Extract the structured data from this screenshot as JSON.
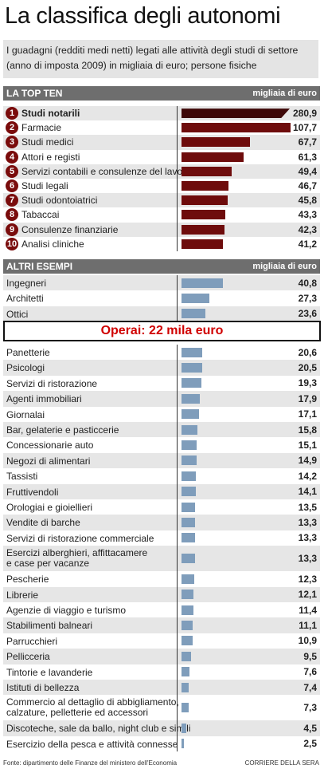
{
  "title": "La classifica degli autonomi",
  "subtitle": "I guadagni (redditi medi netti) legati alle attività degli studi di settore (anno di imposta 2009) in migliaia di euro; persone fisiche",
  "top_ten_header": "LA TOP TEN",
  "others_header": "ALTRI ESEMPI",
  "unit_label": "migliaia di euro",
  "operai_label": "Operai: 22 mila euro",
  "source": "Fonte: dipartimento delle Finanze del ministero dell'Economia",
  "credit": "CORRIERE DELLA SERA",
  "colors": {
    "top_ten_bar": "#6e0c0c",
    "top_ten_bar_first": "#3d0707",
    "other_bar": "#7f9dbb",
    "badge": "#7a0c0c",
    "header_bg": "#6e6e6e"
  },
  "chart_data": {
    "type": "bar",
    "orientation": "horizontal",
    "unit": "migliaia di euro",
    "top_ten": {
      "categories": [
        "Studi notarili",
        "Farmacie",
        "Studi medici",
        "Attori e registi",
        "Servizi contabili e consulenze del lavoro",
        "Studi legali",
        "Studi odontoiatrici",
        "Tabaccai",
        "Consulenze finanziarie",
        "Analisi cliniche"
      ],
      "values": [
        280.9,
        107.7,
        67.7,
        61.3,
        49.4,
        46.7,
        45.8,
        43.3,
        42.3,
        41.2
      ],
      "labels": [
        "280,9",
        "107,7",
        "67,7",
        "61,3",
        "49,4",
        "46,7",
        "45,8",
        "43,3",
        "42,3",
        "41,2"
      ],
      "ranks": [
        "1",
        "2",
        "3",
        "4",
        "5",
        "6",
        "7",
        "8",
        "9",
        "10"
      ]
    },
    "altri_esempi": {
      "categories": [
        "Ingegneri",
        "Architetti",
        "Ottici",
        "Panetterie",
        "Psicologi",
        "Servizi di ristorazione",
        "Agenti immobiliari",
        "Giornalai",
        "Bar, gelaterie e pasticcerie",
        "Concessionarie auto",
        "Negozi di alimentari",
        "Tassisti",
        "Fruttivendoli",
        "Orologiai e gioiellieri",
        "Vendite di barche",
        "Servizi di ristorazione commerciale",
        "Esercizi alberghieri, affittacamere\ne case per vacanze",
        "Pescherie",
        "Librerie",
        "Agenzie di viaggio e turismo",
        "Stabilimenti balneari",
        "Parrucchieri",
        "Pellicceria",
        "Tintorie e lavanderie",
        "Istituti di bellezza",
        "Commercio al dettaglio di abbigliamento,\ncalzature, pelletterie ed accessori",
        "Discoteche, sale da ballo, night club e simili",
        "Esercizio della pesca e attività connesse"
      ],
      "values": [
        40.8,
        27.3,
        23.6,
        20.6,
        20.5,
        19.3,
        17.9,
        17.1,
        15.8,
        15.1,
        14.9,
        14.2,
        14.1,
        13.5,
        13.3,
        13.3,
        13.3,
        12.3,
        12.1,
        11.4,
        11.1,
        10.9,
        9.5,
        7.6,
        7.4,
        7.3,
        4.5,
        2.5
      ],
      "labels": [
        "40,8",
        "27,3",
        "23,6",
        "20,6",
        "20,5",
        "19,3",
        "17,9",
        "17,1",
        "15,8",
        "15,1",
        "14,9",
        "14,2",
        "14,1",
        "13,5",
        "13,3",
        "13,3",
        "13,3",
        "12,3",
        "12,1",
        "11,4",
        "11,1",
        "10,9",
        "9,5",
        "7,6",
        "7,4",
        "7,3",
        "4,5",
        "2,5"
      ]
    },
    "reference_line": {
      "label": "Operai: 22 mila euro",
      "value": 22
    }
  }
}
